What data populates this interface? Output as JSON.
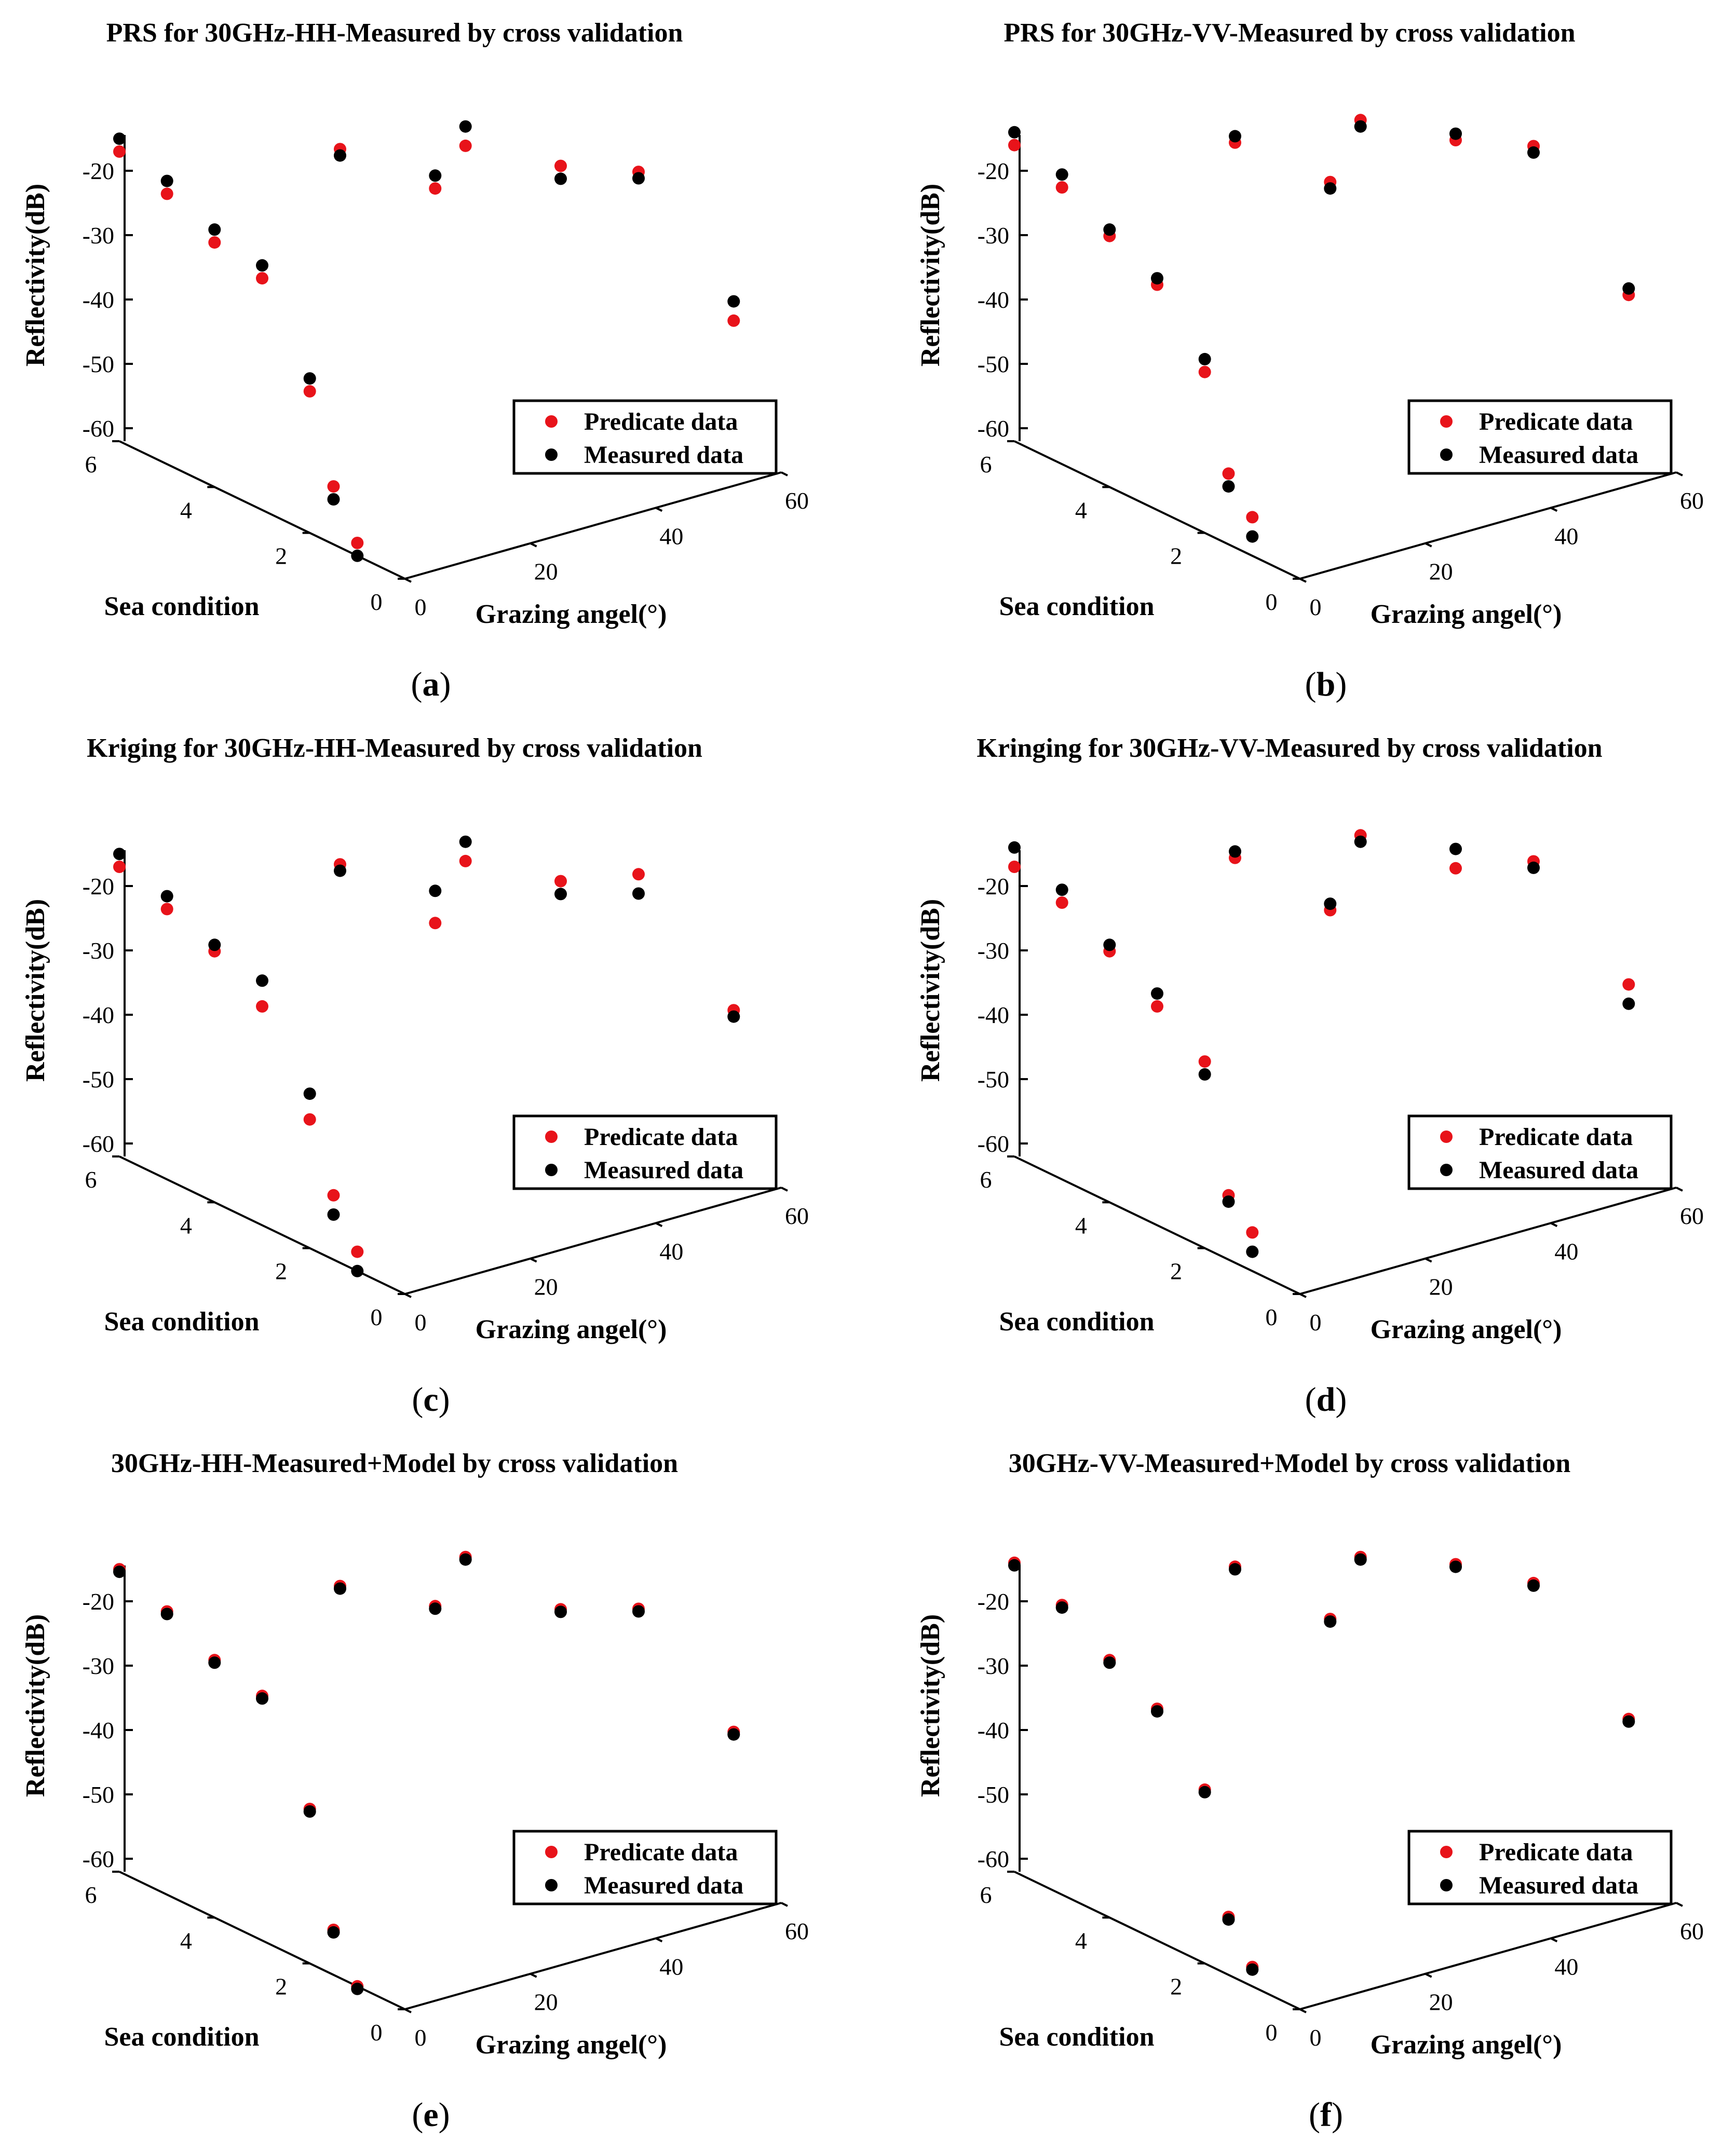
{
  "legend": {
    "predicate": "Predicate data",
    "measured": "Measured data"
  },
  "colors": {
    "predicate": "#e8131a",
    "measured": "#000000"
  },
  "chart_data": [
    {
      "type": "scatter",
      "caption": "a",
      "title": "PRS for 30GHz-HH-Measured by cross validation",
      "xlabel": "Grazing angel(°)",
      "ylabel": "Sea condition",
      "zlabel": "Reflectivity(dB)",
      "x_ticks": [
        "0",
        "20",
        "40",
        "60"
      ],
      "y_ticks": [
        "0",
        "2",
        "4",
        "6"
      ],
      "z_ticks": [
        "-60",
        "-50",
        "-40",
        "-30",
        "-20"
      ],
      "series": [
        {
          "name": "Predicate data",
          "points": [
            [
              0,
              1,
              -58
            ],
            [
              0,
              1.5,
              -51
            ],
            [
              0,
              2,
              -38
            ],
            [
              0,
              3,
              -24
            ],
            [
              0,
              4,
              -22
            ],
            [
              0,
              5,
              -18
            ],
            [
              0,
              6,
              -15
            ],
            [
              20,
              2,
              -12
            ],
            [
              20,
              4,
              -13
            ],
            [
              40,
              2,
              -14
            ],
            [
              40,
              4,
              -18
            ],
            [
              60,
              1,
              -40
            ],
            [
              60,
              3,
              -24
            ]
          ]
        },
        {
          "name": "Measured data",
          "points": [
            [
              0,
              1,
              -60
            ],
            [
              0,
              1.5,
              -53
            ],
            [
              0,
              2,
              -36
            ],
            [
              0,
              3,
              -22
            ],
            [
              0,
              4,
              -20
            ],
            [
              0,
              5,
              -16
            ],
            [
              0,
              6,
              -13
            ],
            [
              20,
              2,
              -10
            ],
            [
              20,
              4,
              -14
            ],
            [
              40,
              2,
              -16
            ],
            [
              40,
              4,
              -15
            ],
            [
              60,
              1,
              -37
            ],
            [
              60,
              3,
              -25
            ]
          ]
        }
      ]
    },
    {
      "type": "scatter",
      "caption": "b",
      "title": "PRS for 30GHz-VV-Measured by cross validation",
      "xlabel": "Grazing angel(°)",
      "ylabel": "Sea condition",
      "zlabel": "Reflectivity(dB)",
      "x_ticks": [
        "0",
        "20",
        "40",
        "60"
      ],
      "y_ticks": [
        "0",
        "2",
        "4",
        "6"
      ],
      "z_ticks": [
        "-60",
        "-50",
        "-40",
        "-30",
        "-20"
      ],
      "series": [
        {
          "name": "Predicate data",
          "points": [
            [
              0,
              1,
              -54
            ],
            [
              0,
              1.5,
              -49
            ],
            [
              0,
              2,
              -35
            ],
            [
              0,
              3,
              -25
            ],
            [
              0,
              4,
              -21
            ],
            [
              0,
              5,
              -17
            ],
            [
              0,
              6,
              -14
            ],
            [
              20,
              2,
              -11
            ],
            [
              20,
              4,
              -12
            ],
            [
              40,
              2,
              -10
            ],
            [
              40,
              4,
              -14
            ],
            [
              60,
              1,
              -36
            ],
            [
              60,
              3,
              -20
            ]
          ]
        },
        {
          "name": "Measured data",
          "points": [
            [
              0,
              1,
              -57
            ],
            [
              0,
              1.5,
              -51
            ],
            [
              0,
              2,
              -33
            ],
            [
              0,
              3,
              -24
            ],
            [
              0,
              4,
              -20
            ],
            [
              0,
              5,
              -15
            ],
            [
              0,
              6,
              -12
            ],
            [
              20,
              2,
              -12
            ],
            [
              20,
              4,
              -11
            ],
            [
              40,
              2,
              -9
            ],
            [
              40,
              4,
              -15
            ],
            [
              60,
              1,
              -35
            ],
            [
              60,
              3,
              -21
            ]
          ]
        }
      ]
    },
    {
      "type": "scatter",
      "caption": "c",
      "title": "Kriging for 30GHz-HH-Measured by cross validation",
      "xlabel": "Grazing angel(°)",
      "ylabel": "Sea condition",
      "zlabel": "Reflectivity(dB)",
      "x_ticks": [
        "0",
        "20",
        "40",
        "60"
      ],
      "y_ticks": [
        "0",
        "2",
        "4",
        "6"
      ],
      "z_ticks": [
        "-60",
        "-50",
        "-40",
        "-30",
        "-20"
      ],
      "series": [
        {
          "name": "Predicate data",
          "points": [
            [
              0,
              1,
              -57
            ],
            [
              0,
              1.5,
              -50
            ],
            [
              0,
              2,
              -40
            ],
            [
              0,
              3,
              -26
            ],
            [
              0,
              4,
              -21
            ],
            [
              0,
              5,
              -18
            ],
            [
              0,
              6,
              -15
            ],
            [
              20,
              2,
              -15
            ],
            [
              20,
              4,
              -13
            ],
            [
              40,
              2,
              -14
            ],
            [
              40,
              4,
              -18
            ],
            [
              60,
              1,
              -36
            ],
            [
              60,
              3,
              -22
            ]
          ]
        },
        {
          "name": "Measured data",
          "points": [
            [
              0,
              1,
              -60
            ],
            [
              0,
              1.5,
              -53
            ],
            [
              0,
              2,
              -36
            ],
            [
              0,
              3,
              -22
            ],
            [
              0,
              4,
              -20
            ],
            [
              0,
              5,
              -16
            ],
            [
              0,
              6,
              -13
            ],
            [
              20,
              2,
              -10
            ],
            [
              20,
              4,
              -14
            ],
            [
              40,
              2,
              -16
            ],
            [
              40,
              4,
              -15
            ],
            [
              60,
              1,
              -37
            ],
            [
              60,
              3,
              -25
            ]
          ]
        }
      ]
    },
    {
      "type": "scatter",
      "caption": "d",
      "title": "Kringing for 30GHz-VV-Measured by cross validation",
      "xlabel": "Grazing angel(°)",
      "ylabel": "Sea condition",
      "zlabel": "Reflectivity(dB)",
      "x_ticks": [
        "0",
        "20",
        "40",
        "60"
      ],
      "y_ticks": [
        "0",
        "2",
        "4",
        "6"
      ],
      "z_ticks": [
        "-60",
        "-50",
        "-40",
        "-30",
        "-20"
      ],
      "series": [
        {
          "name": "Predicate data",
          "points": [
            [
              0,
              1,
              -54
            ],
            [
              0,
              1.5,
              -50
            ],
            [
              0,
              2,
              -31
            ],
            [
              0,
              3,
              -26
            ],
            [
              0,
              4,
              -21
            ],
            [
              0,
              5,
              -17
            ],
            [
              0,
              6,
              -15
            ],
            [
              20,
              2,
              -13
            ],
            [
              20,
              4,
              -12
            ],
            [
              40,
              2,
              -12
            ],
            [
              40,
              4,
              -14
            ],
            [
              60,
              1,
              -32
            ],
            [
              60,
              3,
              -20
            ]
          ]
        },
        {
          "name": "Measured data",
          "points": [
            [
              0,
              1,
              -57
            ],
            [
              0,
              1.5,
              -51
            ],
            [
              0,
              2,
              -33
            ],
            [
              0,
              3,
              -24
            ],
            [
              0,
              4,
              -20
            ],
            [
              0,
              5,
              -15
            ],
            [
              0,
              6,
              -12
            ],
            [
              20,
              2,
              -12
            ],
            [
              20,
              4,
              -11
            ],
            [
              40,
              2,
              -9
            ],
            [
              40,
              4,
              -15
            ],
            [
              60,
              1,
              -35
            ],
            [
              60,
              3,
              -21
            ]
          ]
        }
      ]
    },
    {
      "type": "scatter",
      "caption": "e",
      "title": "30GHz-HH-Measured+Model by cross validation",
      "xlabel": "Grazing angel(°)",
      "ylabel": "Sea condition",
      "zlabel": "Reflectivity(dB)",
      "x_ticks": [
        "0",
        "20",
        "40",
        "60"
      ],
      "y_ticks": [
        "0",
        "2",
        "4",
        "6"
      ],
      "z_ticks": [
        "-60",
        "-50",
        "-40",
        "-30",
        "-20"
      ],
      "series": [
        {
          "name": "Predicate data",
          "points": [
            [
              0,
              1,
              -60
            ],
            [
              0,
              1.5,
              -53
            ],
            [
              0,
              2,
              -36
            ],
            [
              0,
              3,
              -22
            ],
            [
              0,
              4,
              -20
            ],
            [
              0,
              5,
              -16
            ],
            [
              0,
              6,
              -13
            ],
            [
              20,
              2,
              -10
            ],
            [
              20,
              4,
              -14
            ],
            [
              40,
              2,
              -16
            ],
            [
              40,
              4,
              -15
            ],
            [
              60,
              1,
              -37
            ],
            [
              60,
              3,
              -25
            ]
          ]
        },
        {
          "name": "Measured data",
          "points": [
            [
              0,
              1,
              -60.4
            ],
            [
              0,
              1.5,
              -53.4
            ],
            [
              0,
              2,
              -36.4
            ],
            [
              0,
              3,
              -22.4
            ],
            [
              0,
              4,
              -20.4
            ],
            [
              0,
              5,
              -16.4
            ],
            [
              0,
              6,
              -13.4
            ],
            [
              20,
              2,
              -10.4
            ],
            [
              20,
              4,
              -14.4
            ],
            [
              40,
              2,
              -16.4
            ],
            [
              40,
              4,
              -15.4
            ],
            [
              60,
              1,
              -37.4
            ],
            [
              60,
              3,
              -25.4
            ]
          ]
        }
      ]
    },
    {
      "type": "scatter",
      "caption": "f",
      "title": "30GHz-VV-Measured+Model by cross validation",
      "xlabel": "Grazing angel(°)",
      "ylabel": "Sea condition",
      "zlabel": "Reflectivity(dB)",
      "x_ticks": [
        "0",
        "20",
        "40",
        "60"
      ],
      "y_ticks": [
        "0",
        "2",
        "4",
        "6"
      ],
      "z_ticks": [
        "-60",
        "-50",
        "-40",
        "-30",
        "-20"
      ],
      "series": [
        {
          "name": "Predicate data",
          "points": [
            [
              0,
              1,
              -57
            ],
            [
              0,
              1.5,
              -51
            ],
            [
              0,
              2,
              -33
            ],
            [
              0,
              3,
              -24
            ],
            [
              0,
              4,
              -20
            ],
            [
              0,
              5,
              -15
            ],
            [
              0,
              6,
              -12
            ],
            [
              20,
              2,
              -12
            ],
            [
              20,
              4,
              -11
            ],
            [
              40,
              2,
              -9
            ],
            [
              40,
              4,
              -15
            ],
            [
              60,
              1,
              -35
            ],
            [
              60,
              3,
              -21
            ]
          ]
        },
        {
          "name": "Measured data",
          "points": [
            [
              0,
              1,
              -57.4
            ],
            [
              0,
              1.5,
              -51.4
            ],
            [
              0,
              2,
              -33.4
            ],
            [
              0,
              3,
              -24.4
            ],
            [
              0,
              4,
              -20.4
            ],
            [
              0,
              5,
              -15.4
            ],
            [
              0,
              6,
              -12.4
            ],
            [
              20,
              2,
              -12.4
            ],
            [
              20,
              4,
              -11.4
            ],
            [
              40,
              2,
              -9.4
            ],
            [
              40,
              4,
              -15.4
            ],
            [
              60,
              1,
              -35.4
            ],
            [
              60,
              3,
              -21.4
            ]
          ]
        }
      ]
    }
  ]
}
